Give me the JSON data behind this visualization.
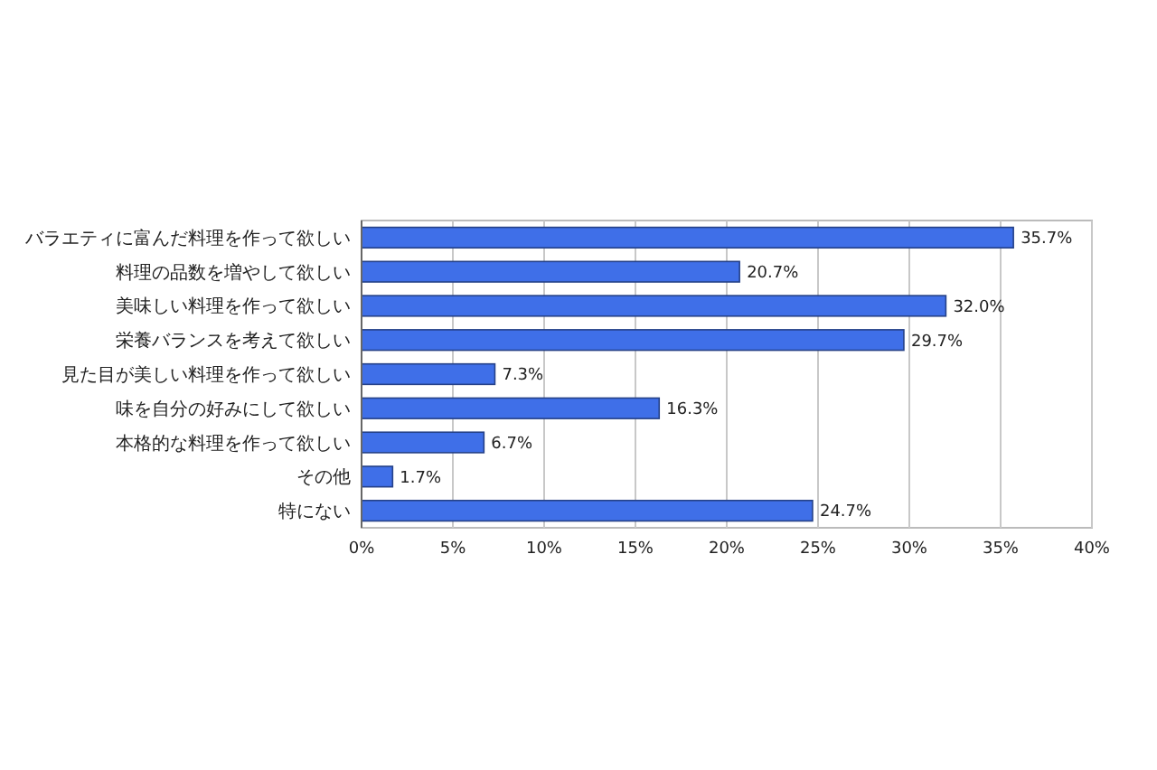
{
  "chart_data": {
    "type": "bar",
    "orientation": "horizontal",
    "categories": [
      "バラエティに富んだ料理を作って欲しい",
      "料理の品数を増やして欲しい",
      "美味しい料理を作って欲しい",
      "栄養バランスを考えて欲しい",
      "見た目が美しい料理を作って欲しい",
      "味を自分の好みにして欲しい",
      "本格的な料理を作って欲しい",
      "その他",
      "特にない"
    ],
    "values": [
      35.7,
      20.7,
      32.0,
      29.7,
      7.3,
      16.3,
      6.7,
      1.7,
      24.7
    ],
    "value_labels": [
      "35.7%",
      "20.7%",
      "32.0%",
      "29.7%",
      "7.3%",
      "16.3%",
      "6.7%",
      "1.7%",
      "24.7%"
    ],
    "color": "#3f6fe8",
    "xlim": [
      0,
      40
    ],
    "xticks": [
      {
        "value": 0,
        "label": "0%"
      },
      {
        "value": 5,
        "label": "5%"
      },
      {
        "value": 10,
        "label": "10%"
      },
      {
        "value": 15,
        "label": "15%"
      },
      {
        "value": 20,
        "label": "20%"
      },
      {
        "value": 25,
        "label": "25%"
      },
      {
        "value": 30,
        "label": "30%"
      },
      {
        "value": 35,
        "label": "35%"
      },
      {
        "value": 40,
        "label": "40%"
      }
    ],
    "grid": "x"
  }
}
